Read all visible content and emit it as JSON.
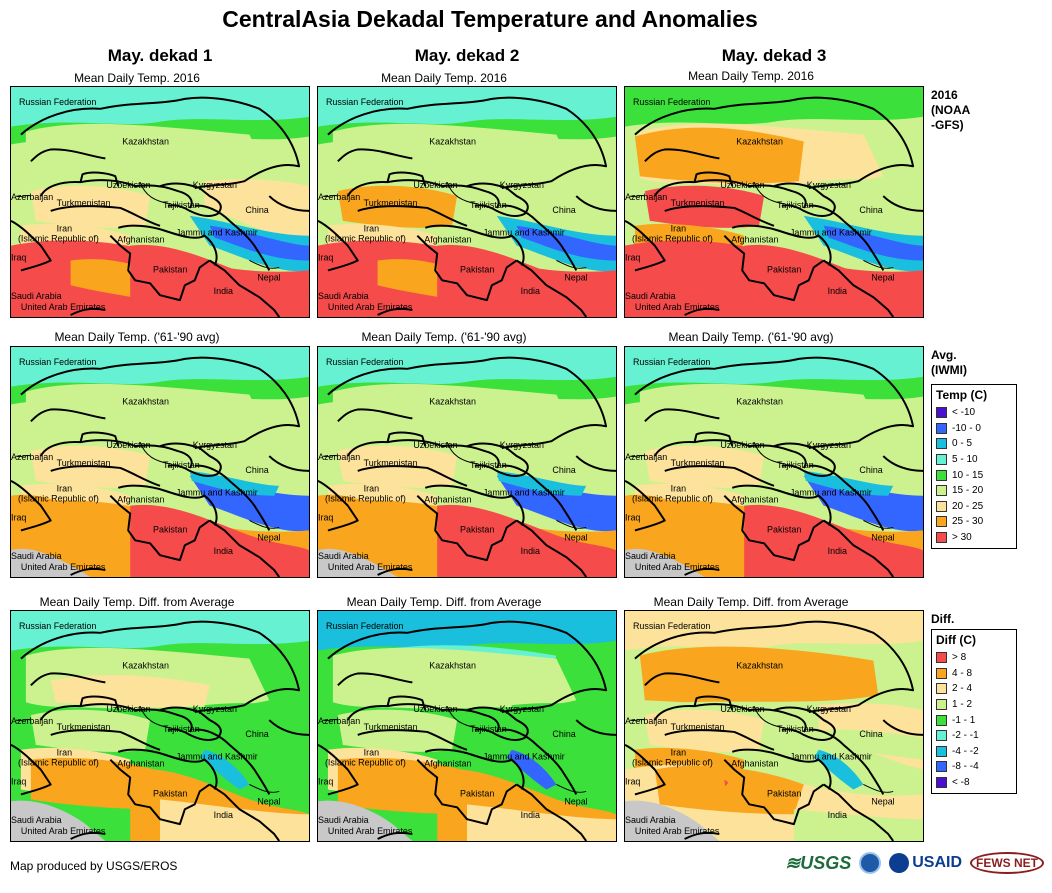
{
  "title": "CentralAsia Dekadal Temperature and Anomalies",
  "columns": [
    "May. dekad 1",
    "May. dekad 2",
    "May. dekad 3"
  ],
  "rows": [
    {
      "subtitle": "Mean Daily Temp. 2016",
      "label_lines": [
        "2016",
        "(NOAA",
        "-GFS)"
      ]
    },
    {
      "subtitle": "Mean Daily Temp. ('61-'90 avg)",
      "label_lines": [
        "Avg.",
        "(IWMI)"
      ]
    },
    {
      "subtitle": "Mean Daily Temp. Diff. from Average",
      "label_lines": [
        "Diff."
      ]
    }
  ],
  "place_names": {
    "russia": "Russian Federation",
    "kazakhstan": "Kazakhstan",
    "uzbekistan": "Uzbekistan",
    "kyrgyzstan": "Kyrgyzstan",
    "azerbaijan": "Azerbaijan",
    "turkmenistan": "Turkmenistan",
    "tajikistan": "Tajikistan",
    "china": "China",
    "iran1": "Iran",
    "iran2": "(Islamic Republic of)",
    "afghanistan": "Afghanistan",
    "jammu": "Jammu and Kashmir",
    "iraq": "Iraq",
    "pakistan": "Pakistan",
    "nepal": "Nepal",
    "india": "India",
    "saudi": "Saudi Arabia",
    "uae": "United Arab Emirates"
  },
  "legend_temp": {
    "title": "Temp (C)",
    "items": [
      {
        "label": "< -10",
        "color": "#4b0fcf"
      },
      {
        "label": "-10 - 0",
        "color": "#3366ff"
      },
      {
        "label": "0 - 5",
        "color": "#19bfdc"
      },
      {
        "label": "5 - 10",
        "color": "#66f2d2"
      },
      {
        "label": "10 - 15",
        "color": "#3be03b"
      },
      {
        "label": "15 - 20",
        "color": "#ccf28f"
      },
      {
        "label": "20 - 25",
        "color": "#fce29a"
      },
      {
        "label": "25 - 30",
        "color": "#f9a51d"
      },
      {
        "label": "> 30",
        "color": "#f54b4b"
      }
    ]
  },
  "legend_diff": {
    "title": "Diff (C)",
    "items": [
      {
        "label": "> 8",
        "color": "#f54b4b"
      },
      {
        "label": "4 - 8",
        "color": "#f9a51d"
      },
      {
        "label": "2 - 4",
        "color": "#fce29a"
      },
      {
        "label": "1 - 2",
        "color": "#ccf28f"
      },
      {
        "label": "-1 - 1",
        "color": "#3be03b"
      },
      {
        "label": "-2 - -1",
        "color": "#66f2d2"
      },
      {
        "label": "-4 - -2",
        "color": "#19bfdc"
      },
      {
        "label": "-8 - -4",
        "color": "#3366ff"
      },
      {
        "label": "< -8",
        "color": "#4b0fcf"
      }
    ]
  },
  "footer": "Map produced by USGS/EROS",
  "logos": {
    "usgs": "≋USGS",
    "usaid": "USAID",
    "fews": "FEWS NET"
  },
  "colors": {
    "sea_gray": "#c8c8c8",
    "border": "#000000"
  }
}
